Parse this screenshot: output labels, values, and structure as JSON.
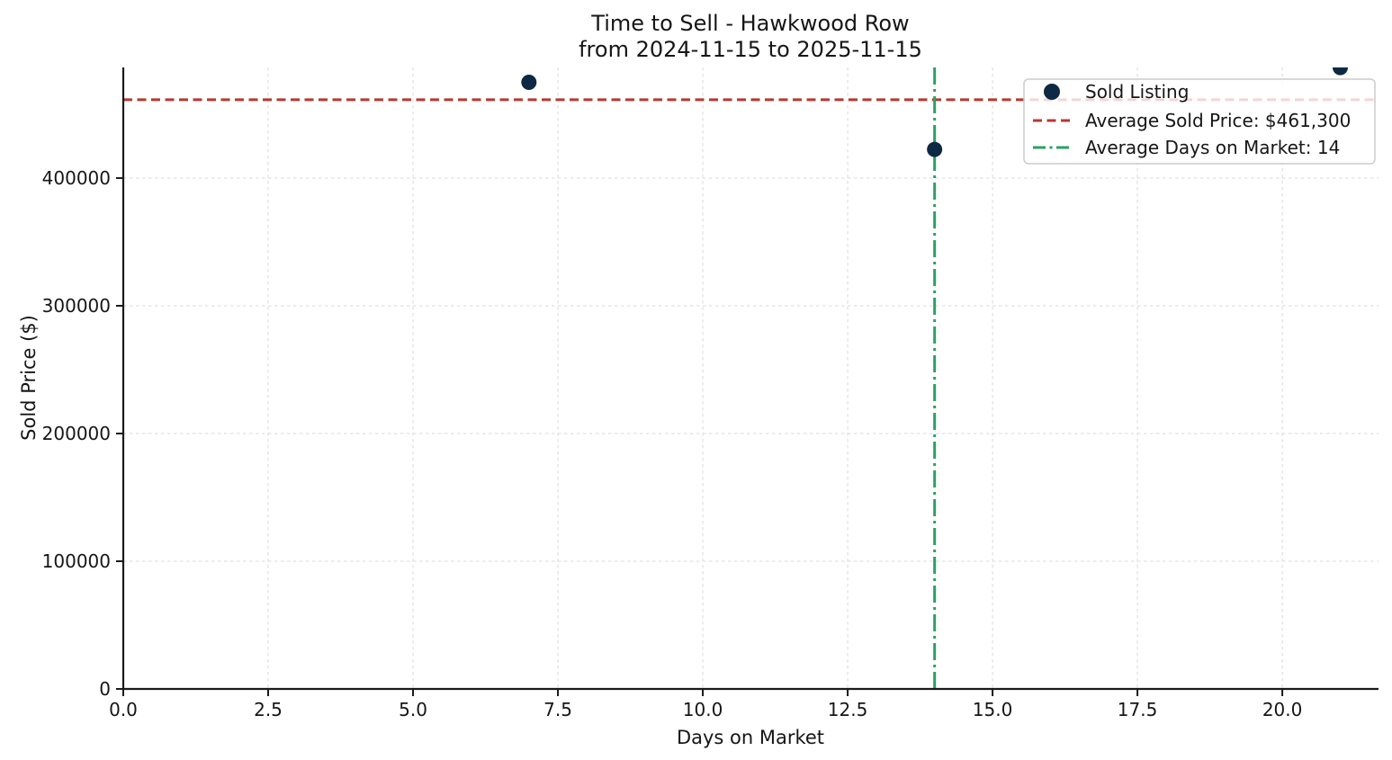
{
  "chart_data": {
    "type": "scatter",
    "title_line1": "Time to Sell - Hawkwood Row",
    "title_line2": "from 2024-11-15 to 2025-11-15",
    "xlabel": "Days on Market",
    "ylabel": "Sold Price ($)",
    "points": [
      {
        "x": 7,
        "y": 475000
      },
      {
        "x": 14,
        "y": 422400
      },
      {
        "x": 21,
        "y": 486500
      }
    ],
    "avg_sold_price": 461300,
    "avg_days_on_market": 14,
    "xlim": [
      0,
      21.66
    ],
    "ylim": [
      0,
      486600
    ],
    "xticks": [
      0,
      2.5,
      5,
      7.5,
      10,
      12.5,
      15,
      17.5,
      20
    ],
    "xtick_labels": [
      "0.0",
      "2.5",
      "5.0",
      "7.5",
      "10.0",
      "12.5",
      "15.0",
      "17.5",
      "20.0"
    ],
    "yticks": [
      0,
      100000,
      200000,
      300000,
      400000
    ],
    "ytick_labels": [
      "0",
      "100000",
      "200000",
      "300000",
      "400000"
    ],
    "grid": true,
    "legend": {
      "position": "upper right",
      "entries": [
        {
          "label": "Sold Listing",
          "marker": "dot",
          "color": "#0e2944"
        },
        {
          "label": "Average Sold Price: $461,300",
          "marker": "dashed-line",
          "color": "#b43a30"
        },
        {
          "label": "Average Days on Market: 14",
          "marker": "dashdot-line",
          "color": "#2ba164"
        }
      ]
    },
    "colors": {
      "point": "#0e2944",
      "avg_price_line": "#b43a30",
      "avg_days_line": "#2ba164",
      "grid": "#d9d9d9",
      "spine": "#1a1a1a",
      "text": "#161616",
      "legend_border": "#cccccc",
      "background": "#ffffff"
    }
  }
}
